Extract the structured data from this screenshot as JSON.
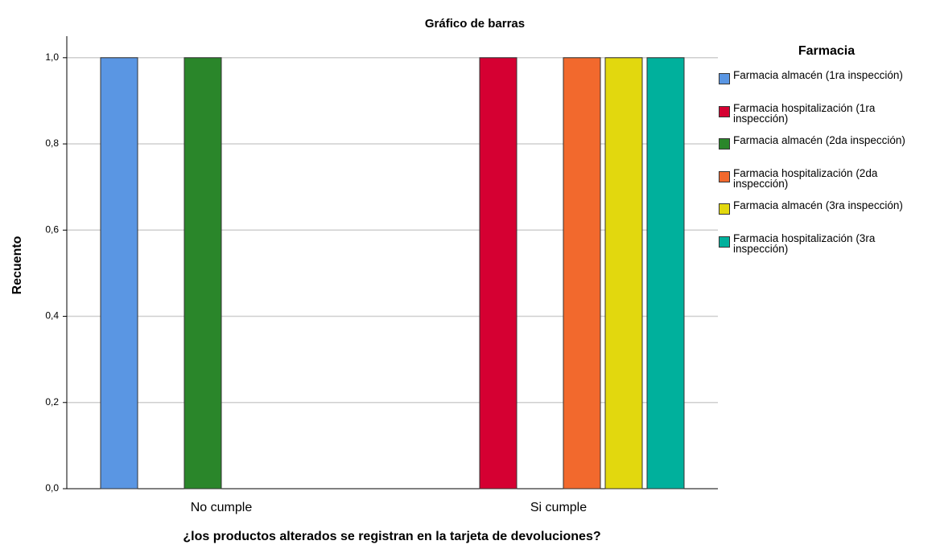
{
  "chart_data": {
    "type": "bar",
    "title": "Gráfico de barras",
    "xlabel": "¿los productos alterados se registran en la tarjeta de devoluciones?",
    "ylabel": "Recuento",
    "legend_title": "Farmacia",
    "categories": [
      "No cumple",
      "Si cumple"
    ],
    "series": [
      {
        "name": "Farmacia almacén (1ra inspección)",
        "color": "#5a96e3",
        "values": [
          1,
          null
        ]
      },
      {
        "name": "Farmacia hospitalización (1ra inspección)",
        "color": "#d50032",
        "values": [
          null,
          1
        ]
      },
      {
        "name": "Farmacia almacén (2da inspección)",
        "color": "#2a862a",
        "values": [
          1,
          null
        ]
      },
      {
        "name": "Farmacia hospitalización (2da inspección)",
        "color": "#f2692d",
        "values": [
          null,
          1
        ]
      },
      {
        "name": "Farmacia almacén (3ra inspección)",
        "color": "#e2d80e",
        "values": [
          null,
          1
        ]
      },
      {
        "name": "Farmacia hospitalización (3ra inspección)",
        "color": "#00b09c",
        "values": [
          null,
          1
        ]
      }
    ],
    "ylim": [
      0,
      1.05
    ],
    "yticks": [
      {
        "value": 0,
        "label": "0,0"
      },
      {
        "value": 0.2,
        "label": "0,2"
      },
      {
        "value": 0.4,
        "label": "0,4"
      },
      {
        "value": 0.6,
        "label": "0,6"
      },
      {
        "value": 0.8,
        "label": "0,8"
      },
      {
        "value": 1,
        "label": "1,0"
      }
    ],
    "grid": true,
    "legend": "right"
  }
}
